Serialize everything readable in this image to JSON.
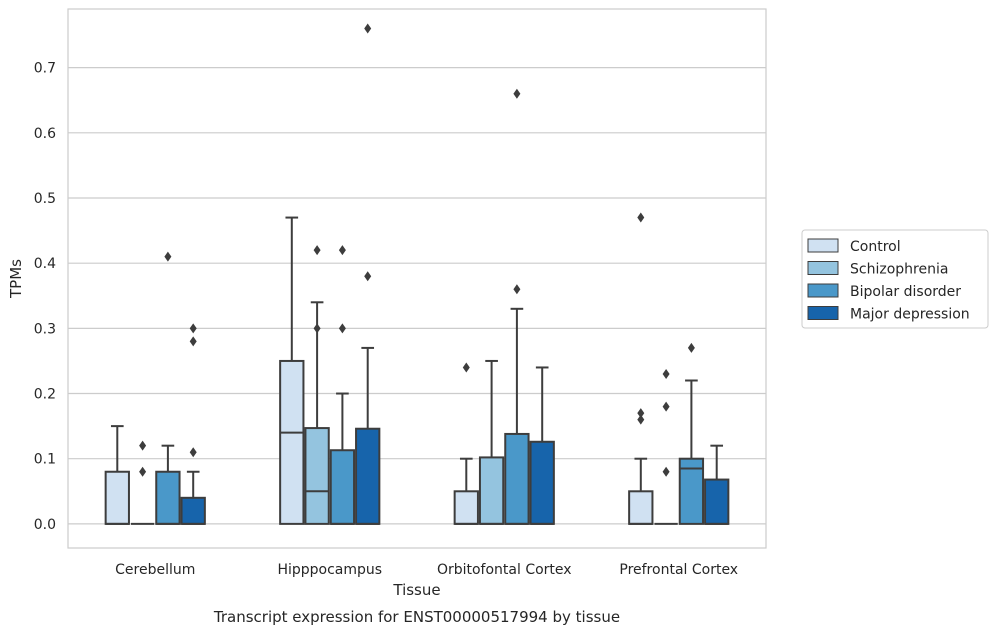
{
  "chart_data": {
    "type": "boxplot",
    "title": "Transcript expression for ENST00000517994 by tissue",
    "xlabel": "Tissue",
    "ylabel": "TPMs",
    "ylim": [
      -0.037,
      0.79
    ],
    "yticks": [
      0.0,
      0.1,
      0.2,
      0.3,
      0.4,
      0.5,
      0.6,
      0.7
    ],
    "ytick_labels": [
      "0.0",
      "0.1",
      "0.2",
      "0.3",
      "0.4",
      "0.5",
      "0.6",
      "0.7"
    ],
    "grid": "horizontal",
    "legend_position": "right",
    "categories": [
      "Cerebellum",
      "Hipppocampus",
      "Orbitofontal Cortex",
      "Prefrontal Cortex"
    ],
    "series": [
      {
        "name": "Control",
        "color": "#d0e1f2",
        "boxes": [
          {
            "q1": 0.0,
            "median": 0.0,
            "q3": 0.08,
            "whisker_low": 0.0,
            "whisker_high": 0.15,
            "outliers": []
          },
          {
            "q1": 0.0,
            "median": 0.14,
            "q3": 0.25,
            "whisker_low": 0.0,
            "whisker_high": 0.47,
            "outliers": []
          },
          {
            "q1": 0.0,
            "median": 0.0,
            "q3": 0.05,
            "whisker_low": 0.0,
            "whisker_high": 0.1,
            "outliers": [
              0.24
            ]
          },
          {
            "q1": 0.0,
            "median": 0.0,
            "q3": 0.05,
            "whisker_low": 0.0,
            "whisker_high": 0.1,
            "outliers": [
              0.16,
              0.17,
              0.47
            ]
          }
        ]
      },
      {
        "name": "Schizophrenia",
        "color": "#94c4df",
        "boxes": [
          {
            "q1": 0.0,
            "median": 0.0,
            "q3": 0.0,
            "whisker_low": 0.0,
            "whisker_high": 0.0,
            "outliers": [
              0.08,
              0.12
            ]
          },
          {
            "q1": 0.0,
            "median": 0.05,
            "q3": 0.147,
            "whisker_low": 0.0,
            "whisker_high": 0.34,
            "outliers": [
              0.42,
              0.3
            ]
          },
          {
            "q1": 0.0,
            "median": 0.0,
            "q3": 0.102,
            "whisker_low": 0.0,
            "whisker_high": 0.25,
            "outliers": []
          },
          {
            "q1": 0.0,
            "median": 0.0,
            "q3": 0.0,
            "whisker_low": 0.0,
            "whisker_high": 0.0,
            "outliers": [
              0.08,
              0.18,
              0.23
            ]
          }
        ]
      },
      {
        "name": "Bipolar disorder",
        "color": "#4a98c9",
        "boxes": [
          {
            "q1": 0.0,
            "median": 0.0,
            "q3": 0.08,
            "whisker_low": 0.0,
            "whisker_high": 0.12,
            "outliers": [
              0.41
            ]
          },
          {
            "q1": 0.0,
            "median": 0.0,
            "q3": 0.113,
            "whisker_low": 0.0,
            "whisker_high": 0.2,
            "outliers": [
              0.3,
              0.42
            ]
          },
          {
            "q1": 0.0,
            "median": 0.0,
            "q3": 0.138,
            "whisker_low": 0.0,
            "whisker_high": 0.33,
            "outliers": [
              0.36,
              0.66
            ]
          },
          {
            "q1": 0.0,
            "median": 0.085,
            "q3": 0.1,
            "whisker_low": 0.0,
            "whisker_high": 0.22,
            "outliers": [
              0.27
            ]
          }
        ]
      },
      {
        "name": "Major depression",
        "color": "#1764ab",
        "boxes": [
          {
            "q1": 0.0,
            "median": 0.0,
            "q3": 0.04,
            "whisker_low": 0.0,
            "whisker_high": 0.08,
            "outliers": [
              0.11,
              0.28,
              0.3
            ]
          },
          {
            "q1": 0.0,
            "median": 0.0,
            "q3": 0.146,
            "whisker_low": 0.0,
            "whisker_high": 0.27,
            "outliers": [
              0.38,
              0.76
            ]
          },
          {
            "q1": 0.0,
            "median": 0.0,
            "q3": 0.126,
            "whisker_low": 0.0,
            "whisker_high": 0.24,
            "outliers": []
          },
          {
            "q1": 0.0,
            "median": 0.0,
            "q3": 0.068,
            "whisker_low": 0.0,
            "whisker_high": 0.12,
            "outliers": []
          }
        ]
      }
    ]
  }
}
